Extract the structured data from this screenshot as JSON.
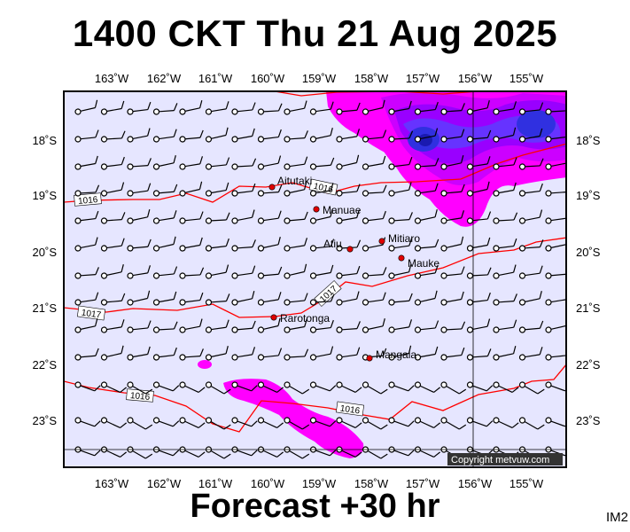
{
  "header": {
    "title": "1400 CKT Thu 21 Aug 2025"
  },
  "footer": {
    "forecast": "Forecast +30 hr",
    "code": "IM2"
  },
  "map": {
    "lon_labels": [
      "163˚W",
      "162˚W",
      "161˚W",
      "160˚W",
      "159˚W",
      "158˚W",
      "157˚W",
      "156˚W",
      "155˚W"
    ],
    "lat_labels": [
      "18˚S",
      "19˚S",
      "20˚S",
      "21˚S",
      "22˚S",
      "23˚S"
    ],
    "places": [
      {
        "name": "Aitutaki"
      },
      {
        "name": "Manuae"
      },
      {
        "name": "Mitiaro"
      },
      {
        "name": "Atiu"
      },
      {
        "name": "Mauke"
      },
      {
        "name": "Rarotonga"
      },
      {
        "name": "Mangaia"
      }
    ],
    "isobars": [
      "1016",
      "1016",
      "1017",
      "1017",
      "1016",
      "1016"
    ],
    "copyright": "Copyright metvuw.com",
    "colors": {
      "ocean": "#e6e6ff",
      "isobar": "#ff0000",
      "rain_light": "#ff00ff",
      "rain_mid": "#9900ff",
      "rain_heavy": "#2020d0"
    }
  }
}
